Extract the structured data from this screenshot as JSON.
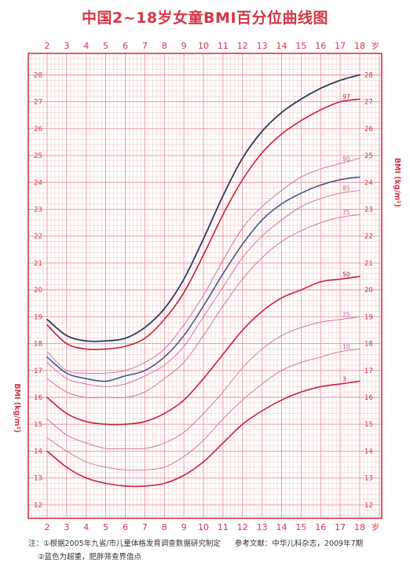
{
  "chart_data": {
    "type": "line",
    "title": "中国2~18岁女童BMI百分位曲线图",
    "x_unit_label": "岁",
    "y_axis_label_left": "BMI (kg/m²)",
    "y_axis_label_right": "BMI (kg/m²)",
    "x_ticks": [
      "2",
      "3",
      "4",
      "5",
      "6",
      "7",
      "8",
      "9",
      "10",
      "11",
      "12",
      "13",
      "14",
      "15",
      "16",
      "17",
      "18"
    ],
    "y_ticks": [
      "12",
      "13",
      "14",
      "15",
      "16",
      "17",
      "18",
      "19",
      "20",
      "21",
      "22",
      "23",
      "24",
      "25",
      "26",
      "27",
      "28"
    ],
    "xlim": [
      2,
      18
    ],
    "ylim": [
      11.5,
      28.8
    ],
    "grid": true,
    "colors": {
      "grid": "#e8909a",
      "axis": "#d63545",
      "blue": "#3d5a8a",
      "red": "#c8203a",
      "pink": "#c86aa0",
      "dark": "#2d3a5a"
    },
    "x": [
      2,
      3,
      4,
      5,
      6,
      7,
      8,
      9,
      10,
      11,
      12,
      13,
      14,
      15,
      16,
      17,
      18
    ],
    "series": [
      {
        "name": "",
        "color": "dark",
        "width": 1.8,
        "values": [
          18.9,
          18.3,
          18.1,
          18.1,
          18.2,
          18.6,
          19.3,
          20.4,
          21.9,
          23.5,
          24.9,
          25.9,
          26.6,
          27.1,
          27.5,
          27.8,
          28.0
        ]
      },
      {
        "name": "97",
        "color": "red",
        "width": 1.6,
        "values": [
          18.7,
          18.0,
          17.8,
          17.8,
          17.9,
          18.2,
          18.9,
          19.9,
          21.3,
          22.8,
          24.1,
          25.1,
          25.8,
          26.3,
          26.7,
          27.0,
          27.1
        ]
      },
      {
        "name": "90",
        "color": "pink",
        "width": 0.9,
        "values": [
          17.7,
          17.0,
          16.9,
          16.9,
          17.0,
          17.3,
          17.8,
          18.7,
          19.8,
          21.1,
          22.3,
          23.1,
          23.7,
          24.2,
          24.5,
          24.7,
          24.9
        ]
      },
      {
        "name": "",
        "color": "blue",
        "width": 1.6,
        "values": [
          17.5,
          16.9,
          16.7,
          16.6,
          16.8,
          17.0,
          17.5,
          18.3,
          19.4,
          20.6,
          21.7,
          22.6,
          23.2,
          23.6,
          23.9,
          24.1,
          24.2
        ]
      },
      {
        "name": "85",
        "color": "pink",
        "width": 0.9,
        "values": [
          17.3,
          16.7,
          16.5,
          16.4,
          16.5,
          16.8,
          17.2,
          17.9,
          19.0,
          20.1,
          21.2,
          22.0,
          22.6,
          23.1,
          23.4,
          23.6,
          23.7
        ]
      },
      {
        "name": "75",
        "color": "pink",
        "width": 0.9,
        "values": [
          16.7,
          16.2,
          16.0,
          16.0,
          16.0,
          16.2,
          16.7,
          17.3,
          18.3,
          19.4,
          20.4,
          21.2,
          21.8,
          22.2,
          22.5,
          22.7,
          22.8
        ]
      },
      {
        "name": "50",
        "color": "red",
        "width": 1.6,
        "values": [
          16.0,
          15.4,
          15.1,
          15.0,
          15.0,
          15.1,
          15.4,
          15.9,
          16.7,
          17.6,
          18.5,
          19.2,
          19.7,
          20.0,
          20.3,
          20.4,
          20.5
        ]
      },
      {
        "name": "25",
        "color": "pink",
        "width": 0.9,
        "values": [
          15.2,
          14.6,
          14.3,
          14.1,
          14.1,
          14.1,
          14.3,
          14.7,
          15.4,
          16.2,
          17.1,
          17.8,
          18.3,
          18.6,
          18.8,
          18.9,
          19.0
        ]
      },
      {
        "name": "10",
        "color": "pink",
        "width": 0.9,
        "values": [
          14.5,
          14.0,
          13.6,
          13.4,
          13.3,
          13.3,
          13.4,
          13.8,
          14.4,
          15.2,
          15.9,
          16.5,
          17.0,
          17.3,
          17.5,
          17.7,
          17.8
        ]
      },
      {
        "name": "3",
        "color": "red",
        "width": 1.6,
        "values": [
          14.0,
          13.4,
          13.0,
          12.8,
          12.7,
          12.7,
          12.8,
          13.1,
          13.6,
          14.3,
          15.0,
          15.5,
          15.9,
          16.2,
          16.4,
          16.5,
          16.6
        ]
      }
    ]
  },
  "notes": {
    "line1": "注：①根据2005年九省/市儿童体格发育调查数据研究制定",
    "ref": "参考文献：中华儿科杂志，2009年7期",
    "line2": "②蓝色为超重，肥胖筛查界值点"
  }
}
